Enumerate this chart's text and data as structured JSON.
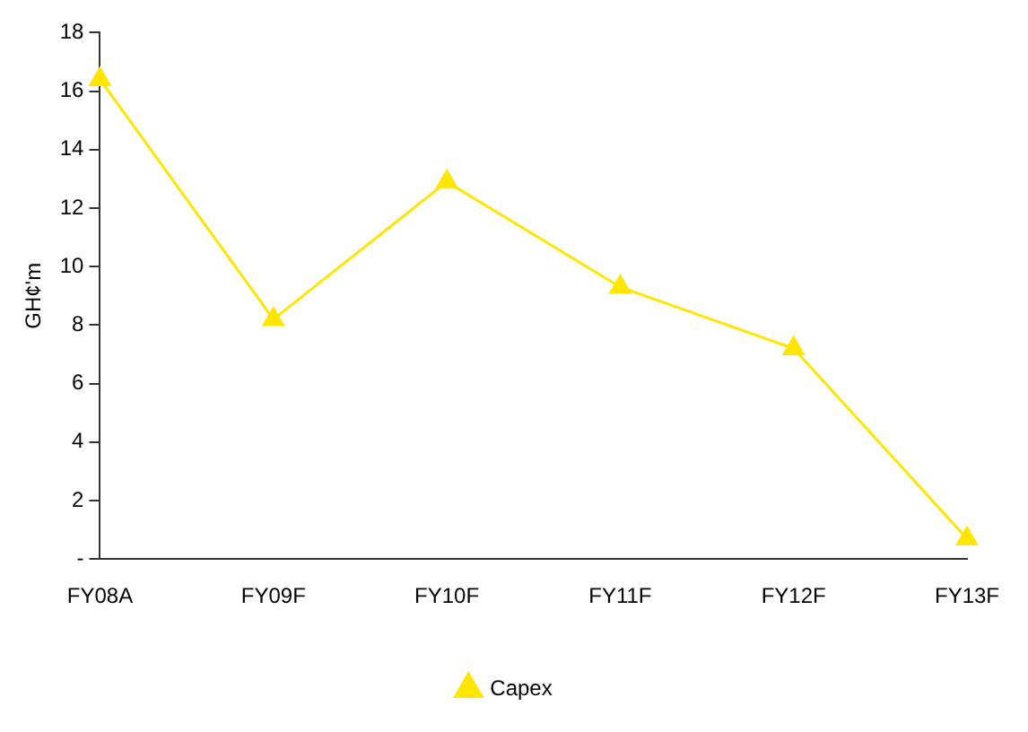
{
  "chart_data": {
    "type": "line",
    "ylabel": "GH¢'m",
    "categories": [
      "FY08A",
      "FY09F",
      "FY10F",
      "FY11F",
      "FY12F",
      "FY13F"
    ],
    "series": [
      {
        "name": "Capex",
        "color": "#ffe600",
        "values": [
          16.4,
          8.2,
          12.9,
          9.3,
          7.2,
          0.7
        ]
      }
    ],
    "ylim": [
      0,
      18
    ],
    "yticks": [
      {
        "value": 0,
        "label": "-"
      },
      2,
      4,
      6,
      8,
      10,
      12,
      14,
      16,
      18
    ],
    "grid": false,
    "legend": "bottom",
    "marker": "triangle",
    "line_style": "solid"
  }
}
